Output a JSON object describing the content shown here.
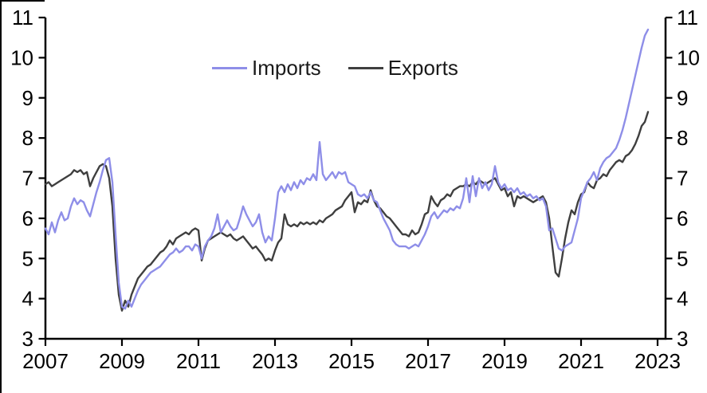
{
  "chart_data": {
    "type": "line",
    "title": "",
    "xlabel": "",
    "ylabel": "",
    "grid": "off",
    "legend_position": "top-center",
    "axes_note": "identical y axis on left and right, ticks outside, no gridlines",
    "ylim": [
      3,
      11
    ],
    "y_ticks": [
      3,
      4,
      5,
      6,
      7,
      8,
      9,
      10,
      11
    ],
    "x_start_year": 2007,
    "x_end_year": 2023,
    "x_tick_labels": [
      "2007",
      "2009",
      "2011",
      "2013",
      "2015",
      "2017",
      "2019",
      "2021",
      "2023"
    ],
    "points_per_year": 12,
    "data_start": "2007-01",
    "data_end": "2022-10",
    "series": [
      {
        "name": "Imports",
        "color": "#8e8ee8",
        "values": [
          5.75,
          5.6,
          5.9,
          5.65,
          5.95,
          6.15,
          5.95,
          6.0,
          6.3,
          6.5,
          6.35,
          6.45,
          6.4,
          6.2,
          6.05,
          6.35,
          6.65,
          6.9,
          7.2,
          7.45,
          7.5,
          6.9,
          5.6,
          4.4,
          3.8,
          3.75,
          3.95,
          3.8,
          4.0,
          4.2,
          4.35,
          4.45,
          4.55,
          4.65,
          4.7,
          4.75,
          4.8,
          4.9,
          5.0,
          5.1,
          5.15,
          5.25,
          5.15,
          5.2,
          5.3,
          5.3,
          5.2,
          5.35,
          5.3,
          5.0,
          5.3,
          5.45,
          5.55,
          5.75,
          6.1,
          5.65,
          5.8,
          5.95,
          5.8,
          5.7,
          5.75,
          6.0,
          6.3,
          6.1,
          5.95,
          5.8,
          5.9,
          6.1,
          5.65,
          5.4,
          5.55,
          5.45,
          6.0,
          6.65,
          6.8,
          6.65,
          6.85,
          6.7,
          6.9,
          6.75,
          6.95,
          6.85,
          7.0,
          6.95,
          7.1,
          6.95,
          7.9,
          7.1,
          6.95,
          7.05,
          7.15,
          7.0,
          7.15,
          7.1,
          7.15,
          6.9,
          6.85,
          6.8,
          6.6,
          6.55,
          6.6,
          6.5,
          6.65,
          6.45,
          6.4,
          6.2,
          6.0,
          5.85,
          5.7,
          5.45,
          5.35,
          5.3,
          5.3,
          5.3,
          5.25,
          5.3,
          5.35,
          5.3,
          5.45,
          5.6,
          5.8,
          6.05,
          6.15,
          6.0,
          6.1,
          6.2,
          6.15,
          6.25,
          6.2,
          6.3,
          6.25,
          6.5,
          7.0,
          6.4,
          7.05,
          6.55,
          7.0,
          6.75,
          6.9,
          6.7,
          6.85,
          7.3,
          6.9,
          6.75,
          6.85,
          6.7,
          6.75,
          6.65,
          6.75,
          6.6,
          6.65,
          6.55,
          6.6,
          6.5,
          6.55,
          6.45,
          6.5,
          6.3,
          5.7,
          5.75,
          5.5,
          5.25,
          5.2,
          5.3,
          5.35,
          5.4,
          5.7,
          6.0,
          6.5,
          6.7,
          6.9,
          7.0,
          7.15,
          6.95,
          7.25,
          7.4,
          7.5,
          7.55,
          7.65,
          7.75,
          7.95,
          8.2,
          8.5,
          8.85,
          9.2,
          9.55,
          9.9,
          10.25,
          10.55,
          10.7
        ]
      },
      {
        "name": "Exports",
        "color": "#3f3f3f",
        "values": [
          6.85,
          6.9,
          6.8,
          6.85,
          6.9,
          6.95,
          7.0,
          7.05,
          7.1,
          7.2,
          7.15,
          7.2,
          7.1,
          7.15,
          6.8,
          7.0,
          7.15,
          7.3,
          7.35,
          7.3,
          7.0,
          6.3,
          5.0,
          4.1,
          3.7,
          3.95,
          3.8,
          4.1,
          4.3,
          4.5,
          4.6,
          4.7,
          4.8,
          4.85,
          4.95,
          5.05,
          5.15,
          5.2,
          5.3,
          5.45,
          5.35,
          5.5,
          5.55,
          5.6,
          5.65,
          5.6,
          5.7,
          5.75,
          5.7,
          4.95,
          5.25,
          5.45,
          5.5,
          5.55,
          5.6,
          5.65,
          5.6,
          5.55,
          5.6,
          5.5,
          5.45,
          5.5,
          5.55,
          5.45,
          5.35,
          5.25,
          5.3,
          5.2,
          5.1,
          4.95,
          5.0,
          4.95,
          5.2,
          5.4,
          5.5,
          6.1,
          5.85,
          5.8,
          5.85,
          5.8,
          5.9,
          5.85,
          5.9,
          5.85,
          5.9,
          5.85,
          5.95,
          5.9,
          6.0,
          6.05,
          6.1,
          6.2,
          6.25,
          6.3,
          6.45,
          6.55,
          6.65,
          6.15,
          6.4,
          6.35,
          6.45,
          6.4,
          6.7,
          6.45,
          6.3,
          6.25,
          6.15,
          6.05,
          6.0,
          5.9,
          5.8,
          5.7,
          5.6,
          5.6,
          5.55,
          5.7,
          5.6,
          5.65,
          5.85,
          6.1,
          6.15,
          6.55,
          6.4,
          6.3,
          6.45,
          6.5,
          6.6,
          6.55,
          6.7,
          6.75,
          6.8,
          6.8,
          6.85,
          6.8,
          6.9,
          6.85,
          6.95,
          6.9,
          6.85,
          6.9,
          6.95,
          7.0,
          6.85,
          6.7,
          6.75,
          6.55,
          6.65,
          6.3,
          6.55,
          6.5,
          6.55,
          6.5,
          6.45,
          6.4,
          6.45,
          6.5,
          6.55,
          6.4,
          6.0,
          5.3,
          4.65,
          4.55,
          5.0,
          5.5,
          5.9,
          6.2,
          6.1,
          6.4,
          6.6,
          6.65,
          6.9,
          6.8,
          6.75,
          6.95,
          7.0,
          7.1,
          7.05,
          7.2,
          7.3,
          7.4,
          7.45,
          7.4,
          7.55,
          7.6,
          7.7,
          7.85,
          8.05,
          8.3,
          8.4,
          8.65
        ]
      }
    ]
  },
  "legend": {
    "imports_label": "Imports",
    "exports_label": "Exports"
  },
  "style": {
    "axis_color": "#000000",
    "background": "#ffffff"
  }
}
